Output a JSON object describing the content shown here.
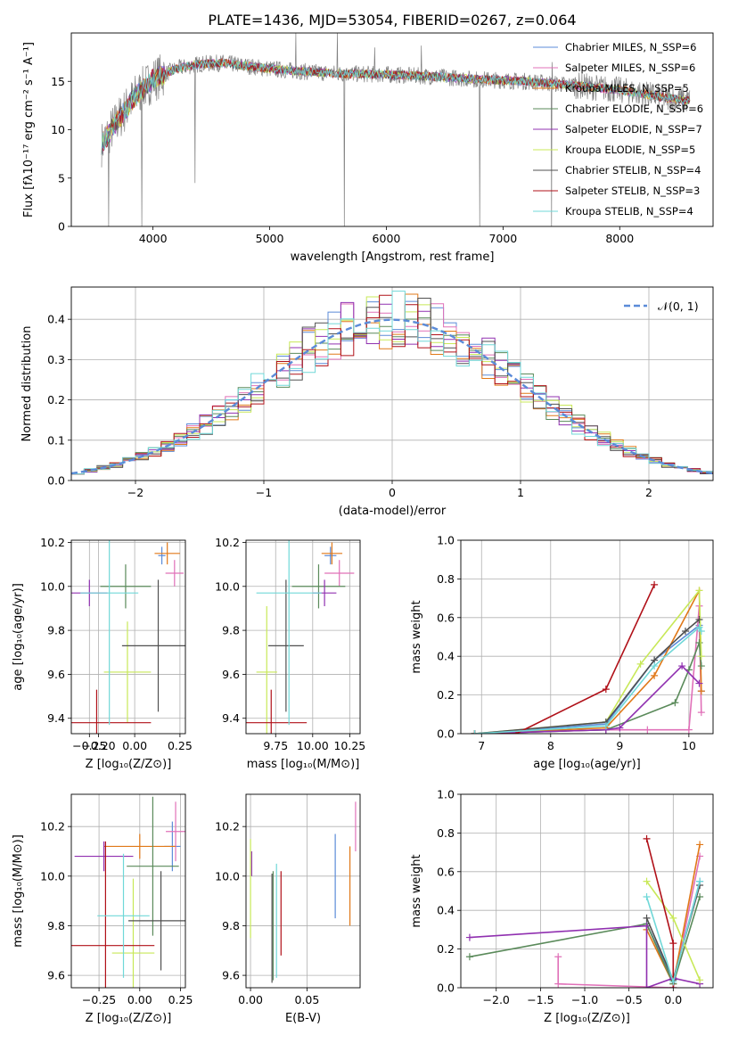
{
  "figure_title": "PLATE=1436, MJD=53054, FIBERID=0267, z=0.064",
  "series_colors": [
    "#5b8bd8",
    "#e070b8",
    "#e07818",
    "#5a8a5a",
    "#9030b0",
    "#c8e858",
    "#505050",
    "#b01018",
    "#70d8d8"
  ],
  "chart_data": [
    {
      "id": "spectrum",
      "type": "line",
      "xlabel": "wavelength [Angstrom, rest frame]",
      "ylabel": "Flux [fλ10⁻¹⁷ erg cm⁻² s⁻¹ A⁻¹]",
      "xlim": [
        3300,
        8800
      ],
      "ylim": [
        0,
        20
      ],
      "x_ticks": [
        "4000",
        "5000",
        "6000",
        "7000",
        "8000"
      ],
      "y_ticks": [
        "0",
        "5",
        "10",
        "15"
      ],
      "grid": false,
      "legend_position": "right",
      "data_color": "#808080",
      "continuum_x": [
        3560,
        3700,
        3850,
        4000,
        4200,
        4400,
        4600,
        4800,
        5000,
        5300,
        5600,
        6000,
        6400,
        6800,
        7200,
        7600,
        8000,
        8400,
        8600
      ],
      "continuum_y": [
        8.5,
        11,
        13.5,
        15.2,
        16.3,
        16.8,
        16.9,
        16.6,
        16.3,
        16.0,
        15.8,
        15.7,
        15.5,
        15.2,
        15.0,
        14.6,
        14.1,
        13.3,
        13.0
      ],
      "spikes": [
        {
          "x": 3620,
          "y": 0.0
        },
        {
          "x": 3905,
          "y": 0.0
        },
        {
          "x": 5640,
          "y": 0.0
        },
        {
          "x": 6800,
          "y": 0.0
        },
        {
          "x": 7415,
          "y": 0.0
        },
        {
          "x": 5225,
          "y": 20.0
        },
        {
          "x": 5580,
          "y": 20.0
        },
        {
          "x": 5900,
          "y": 18.5
        },
        {
          "x": 6300,
          "y": 18.7
        },
        {
          "x": 4360,
          "y": 4.5
        },
        {
          "x": 7420,
          "y": 17.0
        }
      ],
      "series": [
        {
          "name": "Chabrier MILES, N_SSP=6"
        },
        {
          "name": "Salpeter MILES, N_SSP=6"
        },
        {
          "name": "Kroupa MILES, N_SSP=5"
        },
        {
          "name": "Chabrier ELODIE, N_SSP=6"
        },
        {
          "name": "Salpeter ELODIE, N_SSP=7"
        },
        {
          "name": "Kroupa ELODIE, N_SSP=5"
        },
        {
          "name": "Chabrier STELIB, N_SSP=4"
        },
        {
          "name": "Salpeter STELIB, N_SSP=3"
        },
        {
          "name": "Kroupa STELIB, N_SSP=4"
        }
      ]
    },
    {
      "id": "residuals",
      "type": "line",
      "xlabel": "(data-model)/error",
      "ylabel": "Normed distribution",
      "xlim": [
        -2.5,
        2.5
      ],
      "ylim": [
        0,
        0.48
      ],
      "x_ticks": [
        "−2",
        "−1",
        "0",
        "1",
        "2"
      ],
      "y_ticks": [
        "0.0",
        "0.1",
        "0.2",
        "0.3",
        "0.4"
      ],
      "grid": true,
      "legend": "𝒩(0, 1)",
      "legend_position": "top-right",
      "bin_width": 0.1
    },
    {
      "id": "age_vs_Z",
      "type": "scatter",
      "xlabel": "Z [log₁₀(Z/Z⊙)]",
      "ylabel": "age  [log₁₀(age/yr)]",
      "xlim": [
        -0.35,
        0.28
      ],
      "ylim": [
        9.33,
        10.21
      ],
      "x_ticks": [
        "−0.25",
        "−0.20",
        "0.00",
        "0.25"
      ],
      "y_ticks": [
        "9.4",
        "9.6",
        "9.8",
        "10.0",
        "10.2"
      ],
      "grid": true,
      "points": [
        {
          "x": 0.15,
          "y": 10.14,
          "xerr": 0.02,
          "yerr": 0.04
        },
        {
          "x": 0.22,
          "y": 10.06,
          "xerr": 0.05,
          "yerr": 0.06
        },
        {
          "x": 0.18,
          "y": 10.15,
          "xerr": 0.07,
          "yerr": 0.05
        },
        {
          "x": -0.05,
          "y": 10.0,
          "xerr": 0.14,
          "yerr": 0.1
        },
        {
          "x": -0.25,
          "y": 9.97,
          "xerr": 0.1,
          "yerr": 0.06
        },
        {
          "x": -0.04,
          "y": 9.61,
          "xerr": 0.13,
          "yerr": 0.23
        },
        {
          "x": 0.13,
          "y": 9.73,
          "xerr": 0.2,
          "yerr": 0.3
        },
        {
          "x": -0.21,
          "y": 9.38,
          "xerr": 0.3,
          "yerr": 0.15
        },
        {
          "x": -0.14,
          "y": 9.97,
          "xerr": 0.16,
          "yerr": 0.6
        }
      ]
    },
    {
      "id": "age_vs_mass",
      "type": "scatter",
      "xlabel": "mass [log₁₀(M/M⊙)]",
      "ylabel": "",
      "xlim": [
        9.55,
        10.32
      ],
      "ylim": [
        9.33,
        10.21
      ],
      "x_ticks": [
        "9.75",
        "10.00",
        "10.25"
      ],
      "y_ticks": [
        "9.4",
        "9.6",
        "9.8",
        "10.0",
        "10.2"
      ],
      "grid": true,
      "points": [
        {
          "x": 10.12,
          "y": 10.14,
          "xerr": 0.04,
          "yerr": 0.04
        },
        {
          "x": 10.18,
          "y": 10.06,
          "xerr": 0.1,
          "yerr": 0.06
        },
        {
          "x": 10.13,
          "y": 10.15,
          "xerr": 0.07,
          "yerr": 0.05
        },
        {
          "x": 10.04,
          "y": 10.0,
          "xerr": 0.18,
          "yerr": 0.1
        },
        {
          "x": 10.08,
          "y": 9.97,
          "xerr": 0.08,
          "yerr": 0.06
        },
        {
          "x": 9.69,
          "y": 9.61,
          "xerr": 0.07,
          "yerr": 0.3
        },
        {
          "x": 9.82,
          "y": 9.73,
          "xerr": 0.12,
          "yerr": 0.3
        },
        {
          "x": 9.72,
          "y": 9.38,
          "xerr": 0.24,
          "yerr": 0.15
        },
        {
          "x": 9.84,
          "y": 9.97,
          "xerr": 0.22,
          "yerr": 0.6
        }
      ]
    },
    {
      "id": "weight_vs_age",
      "type": "line",
      "xlabel": "age  [log₁₀(age/yr)]",
      "ylabel": "mass weight",
      "xlim": [
        6.7,
        10.35
      ],
      "ylim": [
        0,
        1
      ],
      "x_ticks": [
        "7",
        "8",
        "9",
        "10"
      ],
      "y_ticks": [
        "0.0",
        "0.2",
        "0.4",
        "0.6",
        "0.8",
        "1.0"
      ],
      "grid": true,
      "series": [
        {
          "x": [
            6.9,
            8.8,
            9.5,
            10.15,
            10.18
          ],
          "y": [
            0.0,
            0.05,
            0.38,
            0.56,
            0.22
          ]
        },
        {
          "x": [
            6.9,
            8.8,
            9.4,
            10.0,
            10.15,
            10.18
          ],
          "y": [
            0.0,
            0.02,
            0.02,
            0.02,
            0.66,
            0.11
          ]
        },
        {
          "x": [
            6.9,
            8.8,
            9.5,
            10.15,
            10.18
          ],
          "y": [
            0.0,
            0.03,
            0.3,
            0.74,
            0.22
          ]
        },
        {
          "x": [
            6.9,
            8.8,
            9.8,
            10.0,
            10.15,
            10.18
          ],
          "y": [
            0.0,
            0.02,
            0.16,
            0.33,
            0.47,
            0.35
          ]
        },
        {
          "x": [
            6.9,
            8.8,
            9.0,
            9.9,
            10.15
          ],
          "y": [
            0.0,
            0.02,
            0.03,
            0.35,
            0.26
          ]
        },
        {
          "x": [
            6.9,
            8.8,
            9.3,
            10.15,
            10.18
          ],
          "y": [
            0.0,
            0.06,
            0.36,
            0.74,
            0.4
          ]
        },
        {
          "x": [
            6.9,
            8.8,
            9.5,
            9.95,
            10.15
          ],
          "y": [
            0.0,
            0.06,
            0.38,
            0.53,
            0.59
          ]
        },
        {
          "x": [
            6.9,
            7.5,
            8.8,
            9.5
          ],
          "y": [
            0.0,
            0.0,
            0.23,
            0.77
          ]
        },
        {
          "x": [
            6.9,
            8.8,
            9.5,
            10.15,
            10.18
          ],
          "y": [
            0.0,
            0.04,
            0.35,
            0.55,
            0.53
          ]
        }
      ]
    },
    {
      "id": "mass_vs_Z",
      "type": "scatter",
      "xlabel": "Z [log₁₀(Z/Z⊙)]",
      "ylabel": "mass [log₁₀(M/M⊙)]",
      "xlim": [
        -0.42,
        0.28
      ],
      "ylim": [
        9.55,
        10.33
      ],
      "x_ticks": [
        "−0.25",
        "0.00",
        "0.25"
      ],
      "y_ticks": [
        "9.6",
        "9.8",
        "10.0",
        "10.2"
      ],
      "grid": true,
      "points": [
        {
          "x": 0.2,
          "y": 10.12,
          "xerr": 0.05,
          "yerr": 0.1
        },
        {
          "x": 0.22,
          "y": 10.18,
          "xerr": 0.06,
          "yerr": 0.12
        },
        {
          "x": 0.0,
          "y": 10.12,
          "xerr": 0.22,
          "yerr": 0.05
        },
        {
          "x": 0.08,
          "y": 10.04,
          "xerr": 0.16,
          "yerr": 0.28
        },
        {
          "x": -0.22,
          "y": 10.08,
          "xerr": 0.18,
          "yerr": 0.06
        },
        {
          "x": -0.04,
          "y": 9.69,
          "xerr": 0.13,
          "yerr": 0.3
        },
        {
          "x": 0.13,
          "y": 9.82,
          "xerr": 0.2,
          "yerr": 0.2
        },
        {
          "x": -0.21,
          "y": 9.72,
          "xerr": 0.3,
          "yerr": 0.42
        },
        {
          "x": -0.1,
          "y": 9.84,
          "xerr": 0.16,
          "yerr": 0.25
        }
      ]
    },
    {
      "id": "mass_vs_EBV",
      "type": "scatter",
      "xlabel": "E(B-V)",
      "ylabel": "",
      "xlim": [
        -0.004,
        0.097
      ],
      "ylim": [
        9.55,
        10.33
      ],
      "x_ticks": [
        "0.00",
        "0.05"
      ],
      "y_ticks": [
        "9.6",
        "9.8",
        "10.0",
        "10.2"
      ],
      "grid": true,
      "points": [
        {
          "x": 0.075,
          "y": 10.0,
          "yerr": 0.17
        },
        {
          "x": 0.093,
          "y": 10.2,
          "yerr": 0.1
        },
        {
          "x": 0.088,
          "y": 9.96,
          "yerr": 0.16
        },
        {
          "x": 0.02,
          "y": 9.8,
          "yerr": 0.22
        },
        {
          "x": 0.001,
          "y": 10.05,
          "yerr": 0.05
        },
        {
          "x": 0.0,
          "y": 9.95,
          "yerr": 0.2
        },
        {
          "x": 0.019,
          "y": 9.79,
          "yerr": 0.22
        },
        {
          "x": 0.027,
          "y": 9.85,
          "yerr": 0.17
        },
        {
          "x": 0.023,
          "y": 9.82,
          "yerr": 0.23
        }
      ]
    },
    {
      "id": "weight_vs_Z",
      "type": "line",
      "xlabel": "Z [log₁₀(Z/Z⊙)]",
      "ylabel": "mass weight",
      "xlim": [
        -2.4,
        0.45
      ],
      "ylim": [
        0,
        1
      ],
      "x_ticks": [
        "−2.0",
        "−1.5",
        "−1.0",
        "−0.5",
        "0.0"
      ],
      "y_ticks": [
        "0.0",
        "0.2",
        "0.4",
        "0.6",
        "0.8",
        "1.0"
      ],
      "grid": true,
      "series": [
        {
          "x": [
            -0.3,
            0.0,
            0.3
          ],
          "y": [
            0.33,
            0.04,
            0.55
          ]
        },
        {
          "x": [
            -1.3,
            -1.3,
            0.0,
            0.3
          ],
          "y": [
            0.16,
            0.02,
            0.0,
            0.68
          ]
        },
        {
          "x": [
            -0.3,
            0.0,
            0.3
          ],
          "y": [
            0.3,
            0.02,
            0.74
          ]
        },
        {
          "x": [
            -2.3,
            -0.3,
            0.0,
            0.3
          ],
          "y": [
            0.16,
            0.33,
            0.02,
            0.47
          ]
        },
        {
          "x": [
            -2.3,
            -0.3,
            -0.3,
            0.0,
            0.3
          ],
          "y": [
            0.26,
            0.32,
            0.0,
            0.05,
            0.02
          ]
        },
        {
          "x": [
            -0.3,
            0.0,
            0.3
          ],
          "y": [
            0.55,
            0.36,
            0.04
          ]
        },
        {
          "x": [
            -0.3,
            0.0,
            0.3
          ],
          "y": [
            0.36,
            0.04,
            0.53
          ]
        },
        {
          "x": [
            -0.3,
            0.0,
            0.0
          ],
          "y": [
            0.77,
            0.23,
            0.0
          ]
        },
        {
          "x": [
            -0.3,
            0.0,
            0.3
          ],
          "y": [
            0.47,
            0.03,
            0.55
          ]
        }
      ]
    }
  ]
}
